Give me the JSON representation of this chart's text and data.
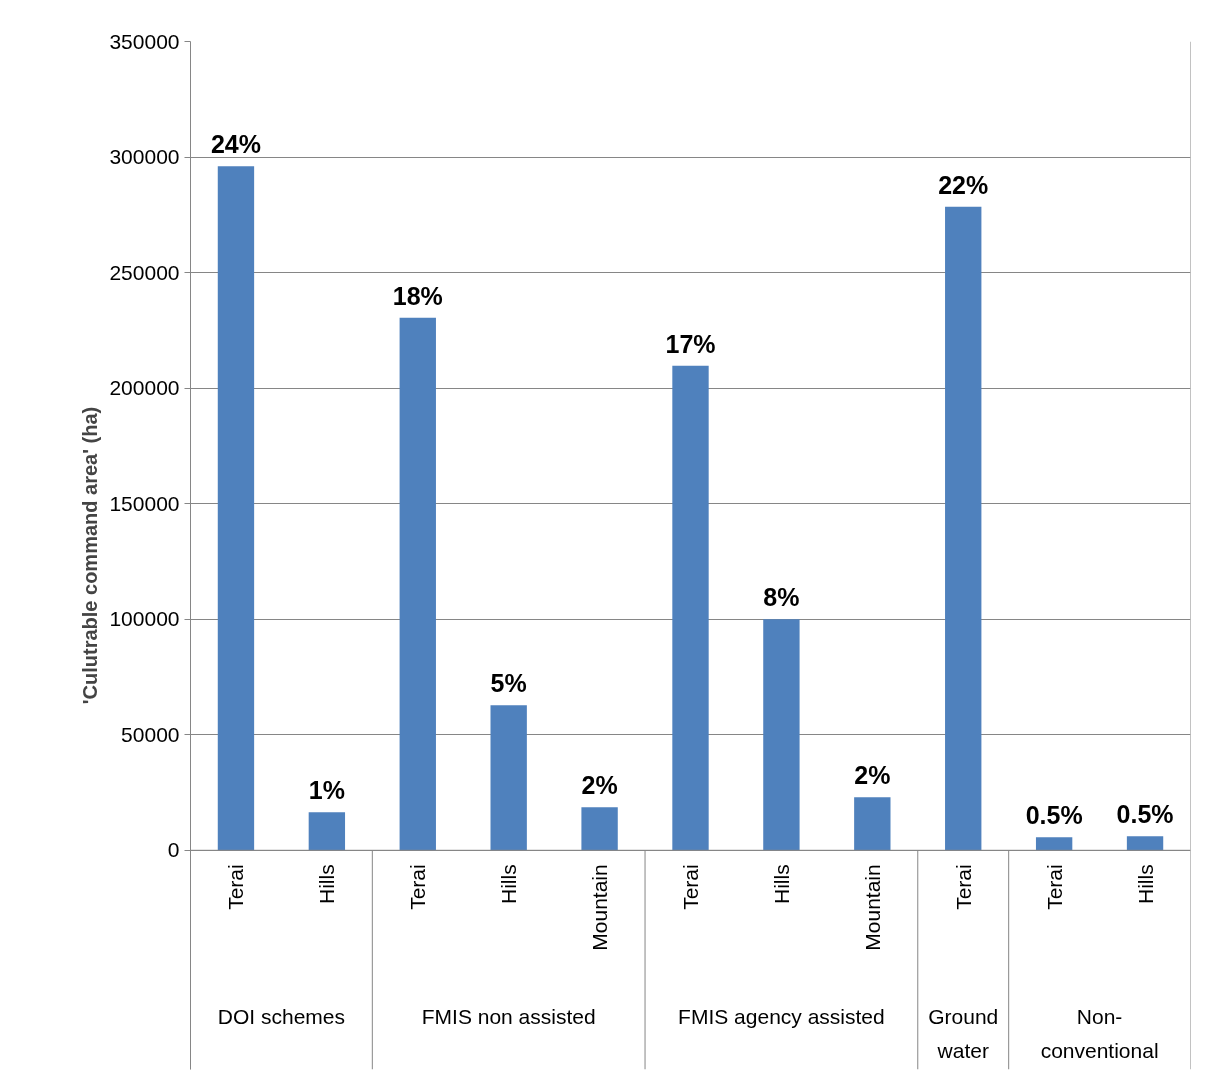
{
  "chart_data": {
    "type": "bar",
    "ylabel": "'Culutrable command area' (ha)",
    "categories": [
      "Terai",
      "Hills",
      "Terai",
      "Hills",
      "Mountain",
      "Terai",
      "Hills",
      "Mountain",
      "Terai",
      "Terai",
      "Hills"
    ],
    "values": [
      296000,
      16500,
      230500,
      62800,
      18600,
      209700,
      100000,
      23000,
      278500,
      5600,
      6100
    ],
    "color": "#4f81bd",
    "annotations": [
      "24%",
      "1%",
      "18%",
      "5%",
      "2%",
      "17%",
      "8%",
      "2%",
      "22%",
      "0.5%",
      "0.5%",
      "DOI schemes",
      "FMIS non assisted",
      "FMIS agency assisted",
      "Ground\nwater",
      "Non-\nconventional"
    ],
    "ylim": [
      0,
      350000
    ],
    "yticks": [
      0,
      50000,
      100000,
      150000,
      200000,
      250000,
      300000,
      350000
    ],
    "grid": "y"
  }
}
